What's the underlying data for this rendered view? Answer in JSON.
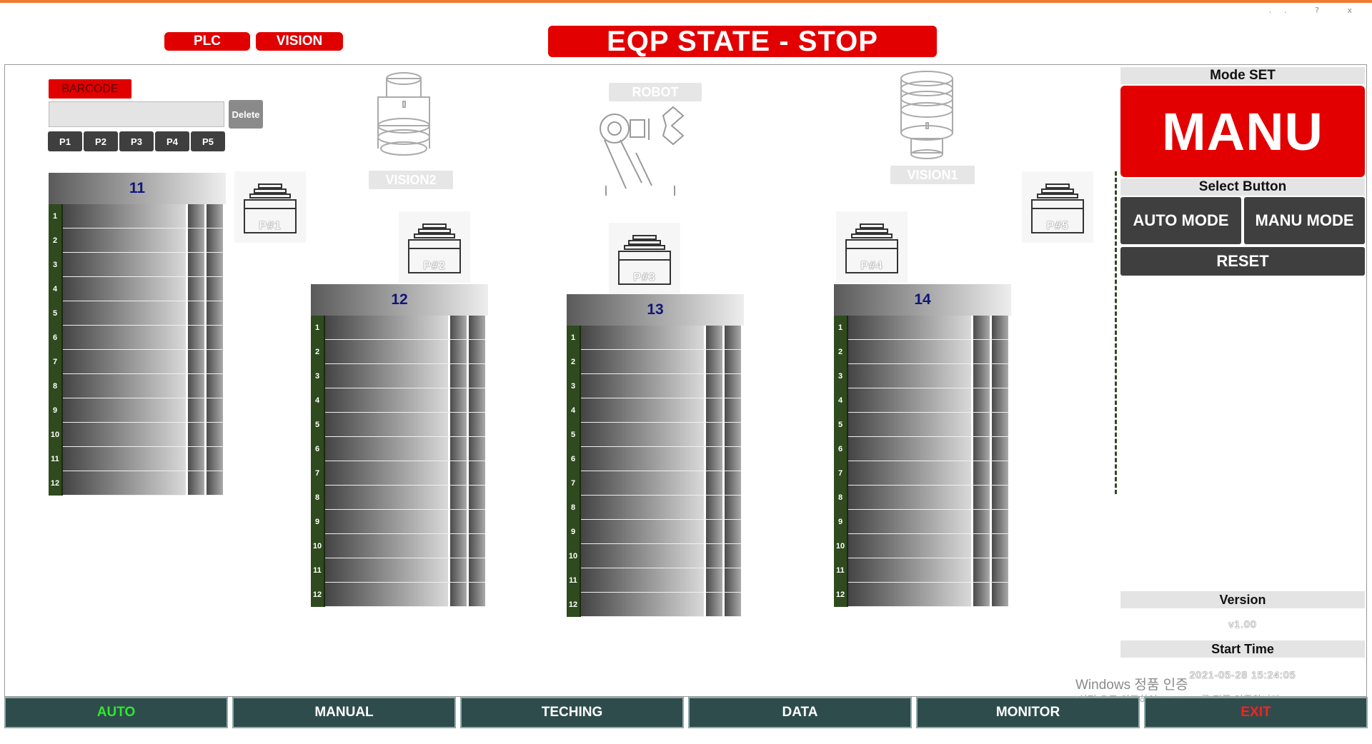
{
  "window": {
    "controls": [
      "..",
      "?",
      "x"
    ]
  },
  "header": {
    "plc_label": "PLC",
    "vision_label": "VISION",
    "eqp_state": "EQP STATE - STOP"
  },
  "barcode": {
    "label": "BARCODE",
    "value": "",
    "delete_label": "Delete",
    "preset_buttons": [
      "P1",
      "P2",
      "P3",
      "P4",
      "P5"
    ]
  },
  "equipment_labels": {
    "vision2": "VISION2",
    "robot": "ROBOT",
    "vision1": "VISION1"
  },
  "ports": [
    "P#1",
    "P#2",
    "P#3",
    "P#4",
    "P#5"
  ],
  "racks": [
    {
      "id": "11",
      "slots": [
        "1",
        "2",
        "3",
        "4",
        "5",
        "6",
        "7",
        "8",
        "9",
        "10",
        "11",
        "12"
      ]
    },
    {
      "id": "12",
      "slots": [
        "1",
        "2",
        "3",
        "4",
        "5",
        "6",
        "7",
        "8",
        "9",
        "10",
        "11",
        "12"
      ]
    },
    {
      "id": "13",
      "slots": [
        "1",
        "2",
        "3",
        "4",
        "5",
        "6",
        "7",
        "8",
        "9",
        "10",
        "11",
        "12"
      ]
    },
    {
      "id": "14",
      "slots": [
        "1",
        "2",
        "3",
        "4",
        "5",
        "6",
        "7",
        "8",
        "9",
        "10",
        "11",
        "12"
      ]
    }
  ],
  "mode_panel": {
    "title": "Mode SET",
    "current_mode": "MANU",
    "select_title": "Select Button",
    "auto_label": "AUTO MODE",
    "manu_label": "MANU MODE",
    "reset_label": "RESET"
  },
  "info": {
    "version_label": "Version",
    "version_value": "v1.00",
    "start_time_label": "Start Time",
    "start_time_value": "2021-05-28 15:24:05"
  },
  "nav": {
    "auto": "AUTO",
    "manual": "MANUAL",
    "teching": "TECHING",
    "data": "DATA",
    "monitor": "MONITOR",
    "exit": "EXIT"
  },
  "watermark": {
    "line1": "Windows 정품 인증",
    "line2": "[설정]으로 이동하여 Windows를 정품 인증합니다."
  },
  "colors": {
    "accent_red": "#e20000",
    "dark_button": "#3f3f3f",
    "nav_bg": "#2f4c4c",
    "active_green": "#2ee82e",
    "exit_red": "#ff2020",
    "rack_title": "#12157a",
    "slot_num_bg": "#2f4a1e"
  }
}
